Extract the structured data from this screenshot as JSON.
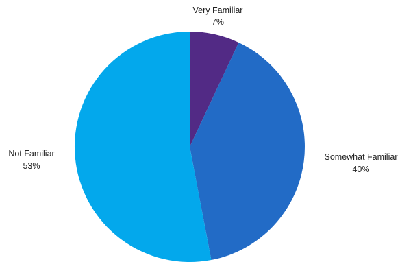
{
  "chart_data": {
    "type": "pie",
    "title": "",
    "start_angle": "top",
    "direction": "clockwise",
    "slices": [
      {
        "label": "Very Familiar",
        "value": 7,
        "value_label": "7%",
        "color": "#522a85"
      },
      {
        "label": "Somewhat Familiar",
        "value": 40,
        "value_label": "40%",
        "color": "#226bc6"
      },
      {
        "label": "Not Familiar",
        "value": 53,
        "value_label": "53%",
        "color": "#03a8ec"
      }
    ]
  }
}
